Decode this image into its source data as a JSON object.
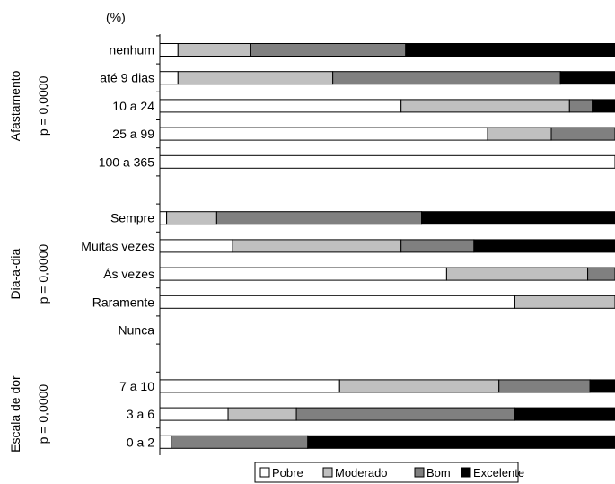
{
  "chart_data": {
    "type": "bar",
    "orientation": "horizontal",
    "stacked": "percent",
    "unit_label": "(%)",
    "xlim": [
      0,
      100
    ],
    "grid": false,
    "legend": "bottom",
    "series": [
      {
        "name": "Pobre",
        "color": "#ffffff"
      },
      {
        "name": "Moderado",
        "color": "#c0c0c0"
      },
      {
        "name": "Bom",
        "color": "#808080"
      },
      {
        "name": "Excelente",
        "color": "#000000"
      }
    ],
    "groups": [
      {
        "title": "Afastamento",
        "pvalue": "p = 0,0000",
        "categories": [
          "nenhum",
          "até 9 dias",
          "10 a 24",
          "25 a 99",
          "100 a 365"
        ],
        "values": [
          [
            4,
            16,
            34,
            46
          ],
          [
            4,
            34,
            50,
            12
          ],
          [
            53,
            37,
            5,
            5
          ],
          [
            72,
            14,
            14,
            0
          ],
          [
            100,
            0,
            0,
            0
          ]
        ]
      },
      {
        "title": "Dia-a-dia",
        "pvalue": "p = 0,0000",
        "categories": [
          "Sempre",
          "Muitas vezes",
          "Às vezes",
          "Raramente",
          "Nunca"
        ],
        "values": [
          [
            1.5,
            11,
            45,
            42.5
          ],
          [
            16,
            37,
            16,
            31
          ],
          [
            63,
            31,
            6,
            0
          ],
          [
            78,
            22,
            0,
            0
          ],
          null
        ]
      },
      {
        "title": "Escala de dor",
        "pvalue": "p = 0,0000",
        "categories": [
          "7 a 10",
          "3 a 6",
          "0 a 2"
        ],
        "values": [
          [
            39.5,
            35,
            20,
            5.5
          ],
          [
            15,
            15,
            48,
            22
          ],
          [
            2.5,
            0,
            30,
            67.5
          ]
        ]
      }
    ]
  }
}
